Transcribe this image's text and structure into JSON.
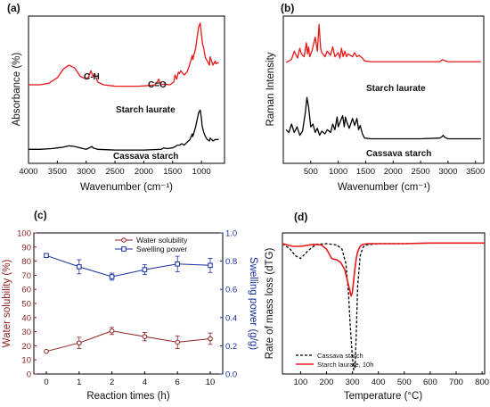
{
  "chart_data": [
    {
      "panel": "(a)",
      "type": "line",
      "xlabel": "Wavenumber (cm⁻¹)",
      "ylabel": "Absorbance (%)",
      "xlim": [
        4000,
        600
      ],
      "x_ticks": [
        "4000",
        "3500",
        "3000",
        "2500",
        "2000",
        "1500",
        "1000"
      ],
      "annotations": [
        "C-H",
        "C=O"
      ],
      "series": [
        {
          "name": "Starch laurate",
          "color": "#e8171a",
          "x": [
            4000,
            3800,
            3650,
            3500,
            3400,
            3300,
            3200,
            3100,
            3000,
            2950,
            2920,
            2880,
            2850,
            2800,
            2700,
            2500,
            2300,
            2100,
            1900,
            1800,
            1760,
            1740,
            1720,
            1700,
            1650,
            1550,
            1480,
            1460,
            1430,
            1400,
            1380,
            1360,
            1300,
            1250,
            1200,
            1160,
            1150,
            1100,
            1080,
            1050,
            1020,
            1000,
            980,
            960,
            930,
            900,
            860,
            850,
            800,
            760,
            750,
            700
          ],
          "y": [
            0.56,
            0.56,
            0.57,
            0.61,
            0.67,
            0.7,
            0.68,
            0.62,
            0.6,
            0.62,
            0.66,
            0.62,
            0.64,
            0.58,
            0.56,
            0.55,
            0.55,
            0.55,
            0.555,
            0.56,
            0.585,
            0.6,
            0.57,
            0.56,
            0.565,
            0.56,
            0.58,
            0.63,
            0.6,
            0.65,
            0.64,
            0.66,
            0.63,
            0.65,
            0.71,
            0.77,
            0.74,
            0.82,
            0.88,
            0.97,
            1.0,
            0.92,
            0.85,
            0.82,
            0.75,
            0.73,
            0.7,
            0.76,
            0.7,
            0.73,
            0.71,
            0.72
          ]
        },
        {
          "name": "Cassava starch",
          "color": "#000000",
          "x": [
            4000,
            3800,
            3600,
            3500,
            3400,
            3300,
            3200,
            3100,
            3000,
            2920,
            2900,
            2880,
            2800,
            2500,
            2000,
            1700,
            1650,
            1600,
            1500,
            1450,
            1420,
            1380,
            1340,
            1300,
            1250,
            1200,
            1160,
            1150,
            1100,
            1080,
            1050,
            1020,
            1000,
            990,
            960,
            930,
            900,
            860,
            850,
            800,
            760,
            700
          ],
          "y": [
            0.1,
            0.1,
            0.105,
            0.11,
            0.115,
            0.125,
            0.12,
            0.11,
            0.1,
            0.115,
            0.12,
            0.11,
            0.1,
            0.095,
            0.095,
            0.1,
            0.11,
            0.105,
            0.11,
            0.12,
            0.13,
            0.13,
            0.14,
            0.13,
            0.15,
            0.17,
            0.21,
            0.19,
            0.26,
            0.3,
            0.36,
            0.38,
            0.32,
            0.27,
            0.22,
            0.19,
            0.17,
            0.16,
            0.18,
            0.16,
            0.17,
            0.17
          ]
        }
      ]
    },
    {
      "panel": "(b)",
      "type": "line",
      "xlabel": "Wavenumber (cm⁻¹)",
      "ylabel": "Raman Intensity",
      "xlim": [
        0,
        3650
      ],
      "x_ticks": [
        "500",
        "1000",
        "1500",
        "2000",
        "2500",
        "3000",
        "3500"
      ],
      "series": [
        {
          "name": "Starch laurate",
          "color": "#e8171a",
          "x": [
            50,
            150,
            200,
            260,
            300,
            330,
            380,
            420,
            440,
            460,
            480,
            520,
            580,
            620,
            650,
            680,
            700,
            760,
            800,
            860,
            900,
            940,
            1000,
            1030,
            1060,
            1090,
            1120,
            1150,
            1180,
            1260,
            1300,
            1340,
            1380,
            1440,
            1480,
            1600,
            2000,
            2500,
            2850,
            2880,
            2900,
            2950,
            3000,
            3300,
            3600
          ],
          "y": [
            0.72,
            0.74,
            0.8,
            0.75,
            0.82,
            0.78,
            0.76,
            0.86,
            0.78,
            0.83,
            0.76,
            0.8,
            0.9,
            0.8,
            0.99,
            0.82,
            0.79,
            0.76,
            0.8,
            0.77,
            0.83,
            0.76,
            0.79,
            0.75,
            0.82,
            0.76,
            0.8,
            0.76,
            0.78,
            0.76,
            0.79,
            0.76,
            0.77,
            0.75,
            0.73,
            0.725,
            0.725,
            0.725,
            0.725,
            0.735,
            0.74,
            0.73,
            0.725,
            0.725,
            0.725
          ]
        },
        {
          "name": "Cassava starch",
          "color": "#000000",
          "x": [
            50,
            100,
            150,
            200,
            250,
            300,
            350,
            400,
            430,
            460,
            480,
            500,
            540,
            580,
            620,
            660,
            700,
            760,
            800,
            860,
            900,
            940,
            980,
            1000,
            1040,
            1080,
            1110,
            1130,
            1160,
            1200,
            1260,
            1300,
            1340,
            1370,
            1400,
            1440,
            1480,
            1600,
            2000,
            2500,
            2850,
            2890,
            2910,
            2940,
            3000,
            3300,
            3600
          ],
          "y": [
            0.24,
            0.22,
            0.28,
            0.22,
            0.26,
            0.2,
            0.23,
            0.36,
            0.47,
            0.4,
            0.33,
            0.26,
            0.28,
            0.22,
            0.25,
            0.2,
            0.23,
            0.21,
            0.24,
            0.22,
            0.28,
            0.24,
            0.33,
            0.26,
            0.3,
            0.34,
            0.26,
            0.33,
            0.29,
            0.25,
            0.32,
            0.27,
            0.32,
            0.24,
            0.27,
            0.21,
            0.18,
            0.175,
            0.175,
            0.175,
            0.18,
            0.19,
            0.2,
            0.185,
            0.175,
            0.175,
            0.175
          ]
        }
      ]
    },
    {
      "panel": "(c)",
      "type": "line",
      "xlabel": "Reaction times (h)",
      "ylabel": "Water solubility (%)",
      "ylabel_right": "Swelling power (g/g)",
      "categories": [
        "0",
        "1",
        "2",
        "4",
        "6",
        "10"
      ],
      "ylim": [
        0,
        100
      ],
      "ylim_right": [
        0.0,
        1.0
      ],
      "y_ticks": [
        "0",
        "10",
        "20",
        "30",
        "40",
        "50",
        "60",
        "70",
        "80",
        "90",
        "100"
      ],
      "y_ticks_right": [
        "0.0",
        "0.2",
        "0.4",
        "0.6",
        "0.8",
        "1.0"
      ],
      "series": [
        {
          "name": "Water solubility",
          "axis": "left",
          "color": "#8b1e1e",
          "marker": "circle",
          "values": [
            16,
            22,
            30.5,
            26.5,
            22.5,
            25
          ],
          "errors": [
            0,
            4,
            2.5,
            3,
            4.5,
            4
          ]
        },
        {
          "name": "Swelling power",
          "axis": "right",
          "color": "#1a2ea0",
          "marker": "square",
          "values": [
            0.84,
            0.76,
            0.69,
            0.74,
            0.78,
            0.77
          ],
          "errors": [
            0,
            0.05,
            0.025,
            0.035,
            0.055,
            0.05
          ]
        }
      ]
    },
    {
      "panel": "(d)",
      "type": "line",
      "xlabel": "Temperature (°C)",
      "ylabel": "Rate of mass loss (dTG)",
      "xlim": [
        30,
        810
      ],
      "x_ticks": [
        "100",
        "200",
        "300",
        "400",
        "500",
        "600",
        "700",
        "800"
      ],
      "series": [
        {
          "name": "Cassava starch",
          "color": "#000000",
          "dash": true,
          "x": [
            30,
            60,
            80,
            100,
            130,
            160,
            200,
            240,
            260,
            275,
            285,
            292,
            300,
            305,
            310,
            315,
            320,
            330,
            340,
            350,
            370,
            400,
            500,
            600,
            700,
            810
          ],
          "y": [
            0.97,
            0.93,
            0.88,
            0.86,
            0.92,
            0.965,
            0.97,
            0.96,
            0.93,
            0.82,
            0.6,
            0.35,
            0.12,
            0.03,
            0.05,
            0.3,
            0.65,
            0.88,
            0.94,
            0.96,
            0.965,
            0.97,
            0.97,
            0.975,
            0.975,
            0.975
          ]
        },
        {
          "name": "Starch laurate, 10h",
          "color": "#e8171a",
          "dash": false,
          "x": [
            30,
            70,
            100,
            150,
            180,
            200,
            220,
            240,
            255,
            270,
            280,
            290,
            295,
            300,
            305,
            310,
            315,
            320,
            330,
            340,
            360,
            400,
            500,
            600,
            700,
            810
          ],
          "y": [
            0.97,
            0.95,
            0.95,
            0.965,
            0.96,
            0.93,
            0.86,
            0.85,
            0.83,
            0.78,
            0.7,
            0.62,
            0.58,
            0.61,
            0.7,
            0.79,
            0.86,
            0.91,
            0.95,
            0.965,
            0.97,
            0.97,
            0.97,
            0.975,
            0.975,
            0.975
          ]
        }
      ]
    }
  ]
}
